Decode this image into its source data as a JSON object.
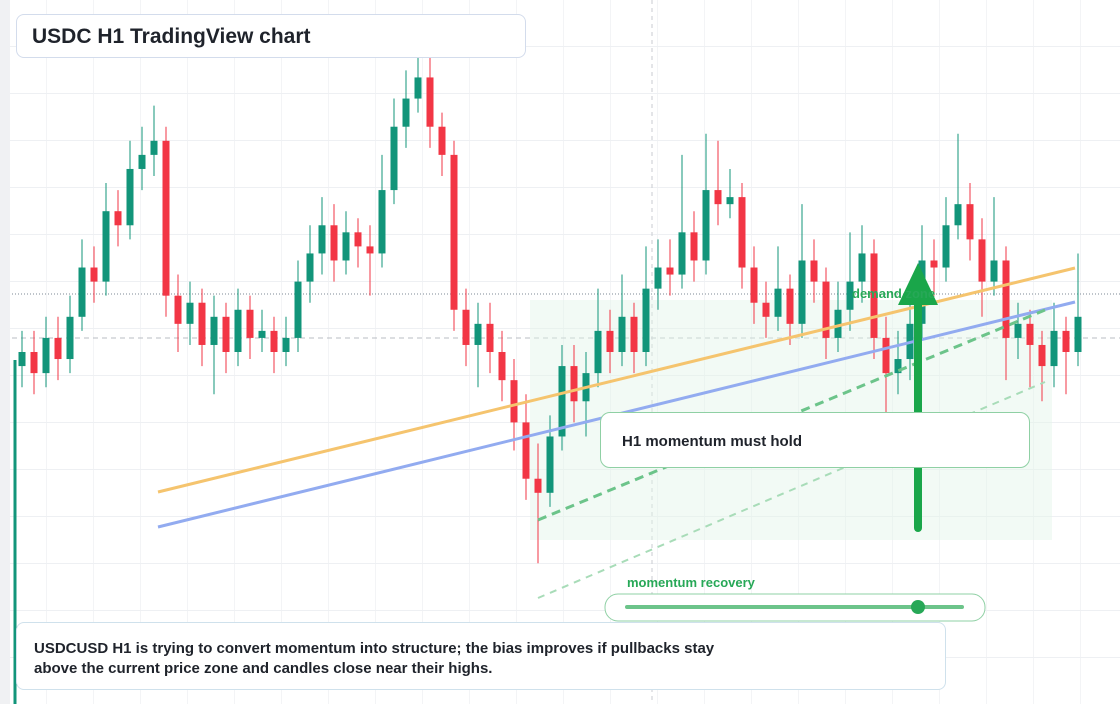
{
  "chart_data": {
    "type": "candlestick",
    "title": "USDC H1 TradingView chart",
    "ylim": [
      0,
      100
    ],
    "up_color": "#12957a",
    "down_color": "#f23645",
    "ohlc": [
      [
        48,
        53,
        45,
        50
      ],
      [
        50,
        53,
        44,
        47
      ],
      [
        47,
        55,
        45,
        52
      ],
      [
        52,
        55,
        46,
        49
      ],
      [
        49,
        58,
        47,
        55
      ],
      [
        55,
        66,
        53,
        62
      ],
      [
        62,
        65,
        57,
        60
      ],
      [
        60,
        74,
        58,
        70
      ],
      [
        70,
        73,
        65,
        68
      ],
      [
        68,
        80,
        66,
        76
      ],
      [
        76,
        82,
        73,
        78
      ],
      [
        78,
        85,
        75,
        80
      ],
      [
        80,
        82,
        55,
        58
      ],
      [
        58,
        61,
        50,
        54
      ],
      [
        54,
        60,
        51,
        57
      ],
      [
        57,
        59,
        48,
        51
      ],
      [
        51,
        58,
        44,
        55
      ],
      [
        55,
        57,
        47,
        50
      ],
      [
        50,
        59,
        48,
        56
      ],
      [
        56,
        58,
        49,
        52
      ],
      [
        52,
        56,
        50,
        53
      ],
      [
        53,
        55,
        47,
        50
      ],
      [
        50,
        55,
        48,
        52
      ],
      [
        52,
        63,
        50,
        60
      ],
      [
        60,
        68,
        57,
        64
      ],
      [
        64,
        72,
        61,
        68
      ],
      [
        68,
        71,
        60,
        63
      ],
      [
        63,
        70,
        61,
        67
      ],
      [
        67,
        69,
        62,
        65
      ],
      [
        65,
        68,
        58,
        64
      ],
      [
        64,
        78,
        62,
        73
      ],
      [
        73,
        86,
        71,
        82
      ],
      [
        82,
        90,
        79,
        86
      ],
      [
        86,
        98,
        84,
        89
      ],
      [
        89,
        92,
        79,
        82
      ],
      [
        82,
        84,
        75,
        78
      ],
      [
        78,
        80,
        53,
        56
      ],
      [
        56,
        59,
        48,
        51
      ],
      [
        51,
        57,
        45,
        54
      ],
      [
        54,
        57,
        47,
        50
      ],
      [
        50,
        53,
        43,
        46
      ],
      [
        46,
        49,
        36,
        40
      ],
      [
        40,
        44,
        29,
        32
      ],
      [
        32,
        37,
        20,
        30
      ],
      [
        30,
        41,
        28,
        38
      ],
      [
        38,
        51,
        36,
        48
      ],
      [
        48,
        51,
        40,
        43
      ],
      [
        43,
        50,
        38,
        47
      ],
      [
        47,
        59,
        45,
        53
      ],
      [
        53,
        56,
        47,
        50
      ],
      [
        50,
        61,
        48,
        55
      ],
      [
        55,
        57,
        47,
        50
      ],
      [
        50,
        65,
        48,
        59
      ],
      [
        59,
        66,
        56,
        62
      ],
      [
        62,
        66,
        58,
        61
      ],
      [
        61,
        78,
        59,
        67
      ],
      [
        67,
        70,
        60,
        63
      ],
      [
        63,
        81,
        61,
        73
      ],
      [
        73,
        80,
        68,
        71
      ],
      [
        71,
        76,
        69,
        72
      ],
      [
        72,
        74,
        59,
        62
      ],
      [
        62,
        65,
        54,
        57
      ],
      [
        57,
        60,
        52,
        55
      ],
      [
        55,
        65,
        53,
        59
      ],
      [
        59,
        61,
        51,
        54
      ],
      [
        54,
        71,
        52,
        63
      ],
      [
        63,
        66,
        57,
        60
      ],
      [
        60,
        62,
        49,
        52
      ],
      [
        52,
        60,
        50,
        56
      ],
      [
        56,
        67,
        53,
        60
      ],
      [
        60,
        68,
        57,
        64
      ],
      [
        64,
        66,
        49,
        52
      ],
      [
        52,
        55,
        41,
        47
      ],
      [
        47,
        53,
        44,
        49
      ],
      [
        49,
        57,
        46,
        54
      ],
      [
        54,
        68,
        52,
        63
      ],
      [
        63,
        66,
        58,
        62
      ],
      [
        62,
        72,
        60,
        68
      ],
      [
        68,
        81,
        66,
        71
      ],
      [
        71,
        74,
        63,
        66
      ],
      [
        66,
        69,
        55,
        60
      ],
      [
        60,
        72,
        58,
        63
      ],
      [
        63,
        65,
        46,
        52
      ],
      [
        52,
        57,
        49,
        54
      ],
      [
        54,
        56,
        45,
        51
      ],
      [
        51,
        53,
        43,
        48
      ],
      [
        48,
        57,
        45,
        53
      ],
      [
        53,
        55,
        44,
        50
      ],
      [
        50,
        64,
        48,
        55
      ]
    ],
    "annotations": {
      "zone": "demand zone",
      "callout": "H1 momentum must hold",
      "slider": "momentum recovery",
      "note": "USDCUSD H1 is trying to convert momentum into structure; the bias improves if pullbacks stay above the current price zone and candles close near their highs."
    }
  }
}
